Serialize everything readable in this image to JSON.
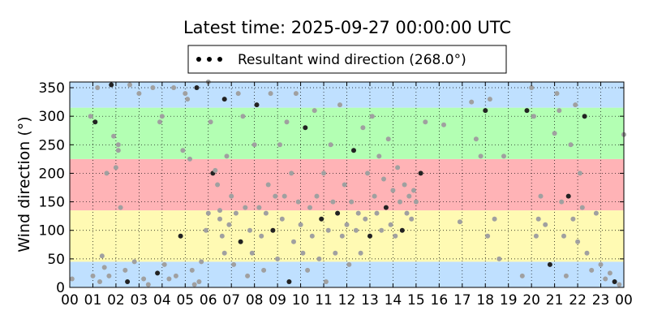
{
  "chart_data": {
    "type": "scatter",
    "title": "Latest time: 2025-09-27 00:00:00 UTC",
    "xlabel": "",
    "ylabel": "Wind direction (°)",
    "xlim": [
      0,
      24
    ],
    "ylim": [
      0,
      360
    ],
    "grid": true,
    "legend": {
      "placement": "top-center",
      "entries": [
        "Resultant wind direction (268.0°)"
      ]
    },
    "x_ticks": [
      "00",
      "01",
      "02",
      "03",
      "04",
      "05",
      "06",
      "07",
      "08",
      "09",
      "10",
      "11",
      "12",
      "13",
      "14",
      "15",
      "16",
      "17",
      "18",
      "19",
      "20",
      "21",
      "22",
      "23",
      "00"
    ],
    "y_ticks": [
      "0",
      "50",
      "100",
      "150",
      "200",
      "250",
      "300",
      "350"
    ],
    "bands": [
      {
        "from": 0,
        "to": 45,
        "color": "#bfe0ff"
      },
      {
        "from": 45,
        "to": 135,
        "color": "#fffab3"
      },
      {
        "from": 135,
        "to": 225,
        "color": "#ffb3b6"
      },
      {
        "from": 225,
        "to": 315,
        "color": "#b3ffb3"
      },
      {
        "from": 315,
        "to": 360,
        "color": "#bfe0ff"
      }
    ],
    "series": [
      {
        "name": "Resultant wind direction (268.0°)",
        "color": "#a0a0a0",
        "dark_color": "#222222",
        "points": [
          [
            0.1,
            15
          ],
          [
            0.9,
            300
          ],
          [
            1.0,
            20
          ],
          [
            1.1,
            290
          ],
          [
            1.2,
            350
          ],
          [
            1.3,
            10
          ],
          [
            1.4,
            55
          ],
          [
            1.5,
            35
          ],
          [
            1.6,
            200
          ],
          [
            1.7,
            20
          ],
          [
            1.8,
            355
          ],
          [
            1.9,
            265
          ],
          [
            2.0,
            210
          ],
          [
            2.1,
            240
          ],
          [
            2.1,
            250
          ],
          [
            2.2,
            140
          ],
          [
            2.4,
            30
          ],
          [
            2.5,
            10
          ],
          [
            2.6,
            355
          ],
          [
            2.8,
            45
          ],
          [
            3.0,
            340
          ],
          [
            3.2,
            15
          ],
          [
            3.4,
            5
          ],
          [
            3.6,
            350
          ],
          [
            3.8,
            25
          ],
          [
            3.9,
            290
          ],
          [
            4.0,
            300
          ],
          [
            4.1,
            40
          ],
          [
            4.3,
            15
          ],
          [
            4.5,
            350
          ],
          [
            4.6,
            20
          ],
          [
            4.8,
            90
          ],
          [
            4.9,
            240
          ],
          [
            5.0,
            340
          ],
          [
            5.1,
            330
          ],
          [
            5.2,
            225
          ],
          [
            5.3,
            30
          ],
          [
            5.4,
            5
          ],
          [
            5.5,
            350
          ],
          [
            5.6,
            10
          ],
          [
            5.7,
            45
          ],
          [
            5.9,
            100
          ],
          [
            6.0,
            130
          ],
          [
            6.0,
            360
          ],
          [
            6.1,
            290
          ],
          [
            6.2,
            200
          ],
          [
            6.3,
            205
          ],
          [
            6.4,
            180
          ],
          [
            6.5,
            120
          ],
          [
            6.5,
            135
          ],
          [
            6.6,
            90
          ],
          [
            6.7,
            60
          ],
          [
            6.7,
            330
          ],
          [
            6.8,
            230
          ],
          [
            6.9,
            110
          ],
          [
            7.0,
            160
          ],
          [
            7.1,
            40
          ],
          [
            7.2,
            130
          ],
          [
            7.3,
            340
          ],
          [
            7.4,
            80
          ],
          [
            7.5,
            300
          ],
          [
            7.6,
            140
          ],
          [
            7.7,
            20
          ],
          [
            7.8,
            100
          ],
          [
            7.9,
            60
          ],
          [
            8.0,
            250
          ],
          [
            8.1,
            320
          ],
          [
            8.2,
            140
          ],
          [
            8.3,
            90
          ],
          [
            8.4,
            30
          ],
          [
            8.5,
            130
          ],
          [
            8.6,
            180
          ],
          [
            8.7,
            340
          ],
          [
            8.8,
            100
          ],
          [
            8.9,
            160
          ],
          [
            9.0,
            50
          ],
          [
            9.1,
            250
          ],
          [
            9.2,
            120
          ],
          [
            9.3,
            160
          ],
          [
            9.4,
            290
          ],
          [
            9.5,
            10
          ],
          [
            9.6,
            200
          ],
          [
            9.7,
            80
          ],
          [
            9.8,
            340
          ],
          [
            9.9,
            150
          ],
          [
            10.0,
            110
          ],
          [
            10.1,
            60
          ],
          [
            10.2,
            280
          ],
          [
            10.3,
            30
          ],
          [
            10.4,
            140
          ],
          [
            10.5,
            90
          ],
          [
            10.6,
            310
          ],
          [
            10.7,
            160
          ],
          [
            10.8,
            50
          ],
          [
            10.9,
            120
          ],
          [
            11.0,
            200
          ],
          [
            11.1,
            10
          ],
          [
            11.2,
            100
          ],
          [
            11.3,
            250
          ],
          [
            11.4,
            150
          ],
          [
            11.5,
            60
          ],
          [
            11.6,
            130
          ],
          [
            11.7,
            320
          ],
          [
            11.8,
            90
          ],
          [
            11.9,
            180
          ],
          [
            12.0,
            110
          ],
          [
            12.1,
            40
          ],
          [
            12.2,
            150
          ],
          [
            12.3,
            240
          ],
          [
            12.4,
            100
          ],
          [
            12.5,
            130
          ],
          [
            12.6,
            60
          ],
          [
            12.7,
            280
          ],
          [
            12.8,
            120
          ],
          [
            12.9,
            200
          ],
          [
            13.0,
            90
          ],
          [
            13.1,
            300
          ],
          [
            13.2,
            160
          ],
          [
            13.3,
            130
          ],
          [
            13.4,
            230
          ],
          [
            13.5,
            100
          ],
          [
            13.6,
            190
          ],
          [
            13.7,
            140
          ],
          [
            13.8,
            260
          ],
          [
            13.9,
            110
          ],
          [
            14.0,
            170
          ],
          [
            14.1,
            90
          ],
          [
            14.2,
            210
          ],
          [
            14.3,
            150
          ],
          [
            14.4,
            100
          ],
          [
            14.5,
            180
          ],
          [
            14.6,
            130
          ],
          [
            14.7,
            160
          ],
          [
            14.8,
            120
          ],
          [
            14.9,
            170
          ],
          [
            15.0,
            150
          ],
          [
            15.2,
            200
          ],
          [
            15.4,
            290
          ],
          [
            16.2,
            285
          ],
          [
            16.9,
            115
          ],
          [
            17.4,
            325
          ],
          [
            17.6,
            260
          ],
          [
            17.8,
            230
          ],
          [
            18.0,
            310
          ],
          [
            18.1,
            90
          ],
          [
            18.2,
            330
          ],
          [
            18.4,
            120
          ],
          [
            18.6,
            50
          ],
          [
            18.8,
            230
          ],
          [
            19.6,
            20
          ],
          [
            19.8,
            310
          ],
          [
            20.0,
            350
          ],
          [
            20.1,
            300
          ],
          [
            20.2,
            90
          ],
          [
            20.3,
            120
          ],
          [
            20.4,
            160
          ],
          [
            20.6,
            110
          ],
          [
            20.8,
            40
          ],
          [
            21.0,
            270
          ],
          [
            21.1,
            340
          ],
          [
            21.2,
            310
          ],
          [
            21.3,
            150
          ],
          [
            21.4,
            90
          ],
          [
            21.5,
            20
          ],
          [
            21.6,
            160
          ],
          [
            21.7,
            250
          ],
          [
            21.8,
            120
          ],
          [
            21.9,
            320
          ],
          [
            22.0,
            80
          ],
          [
            22.1,
            200
          ],
          [
            22.2,
            140
          ],
          [
            22.3,
            300
          ],
          [
            22.4,
            60
          ],
          [
            22.6,
            30
          ],
          [
            22.8,
            130
          ],
          [
            23.0,
            40
          ],
          [
            23.2,
            15
          ],
          [
            23.4,
            25
          ],
          [
            23.6,
            10
          ],
          [
            23.8,
            5
          ],
          [
            24.0,
            268
          ]
        ]
      }
    ]
  }
}
